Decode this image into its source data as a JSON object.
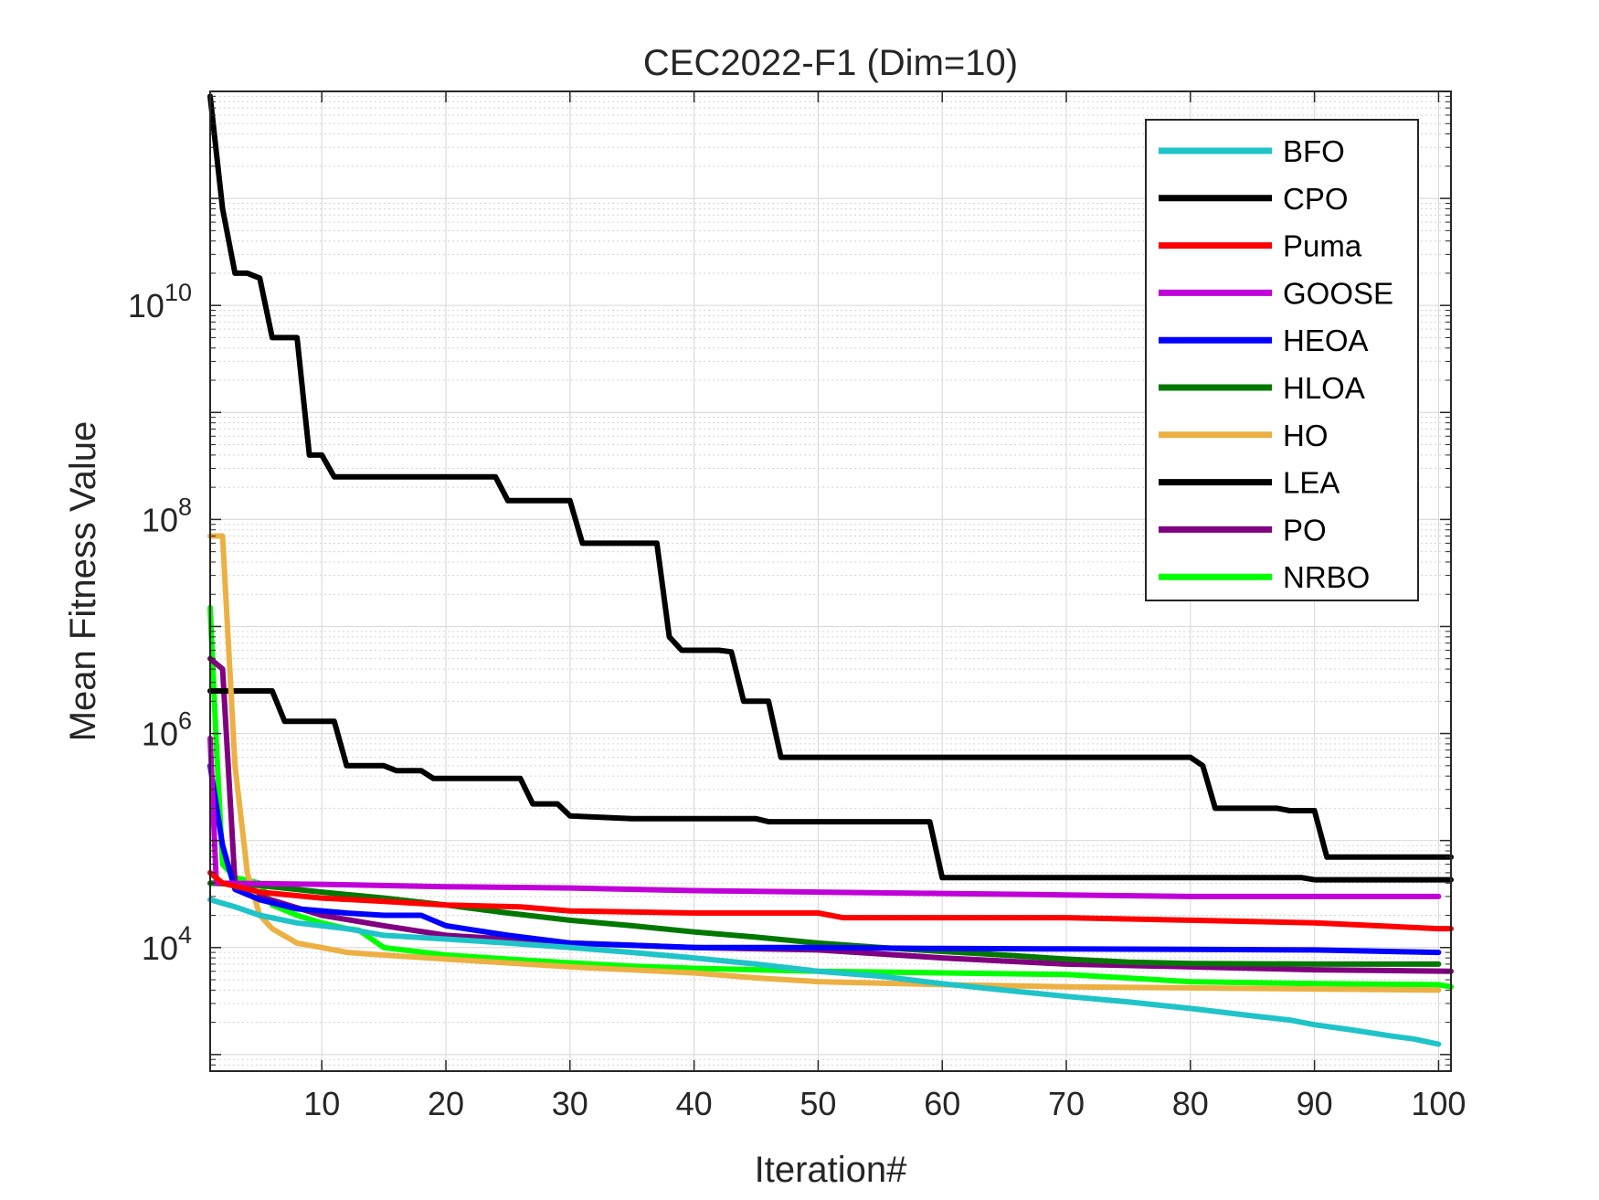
{
  "chart_data": {
    "type": "line",
    "title": "CEC2022-F1 (Dim=10)",
    "xlabel": "Iteration#",
    "ylabel": "Mean Fitness Value",
    "xlim": [
      1,
      101
    ],
    "ylim": [
      700,
      1000000000000
    ],
    "yscale": "log",
    "grid": true,
    "minor_grid": true,
    "legend_position": "top-right",
    "x_ticks": [
      10,
      20,
      30,
      40,
      50,
      60,
      70,
      80,
      90,
      100
    ],
    "x_tick_labels": [
      "10",
      "20",
      "30",
      "40",
      "50",
      "60",
      "70",
      "80",
      "90",
      "100"
    ],
    "y_ticks": [
      {
        "value": 10000,
        "base": "10",
        "exp": "4"
      },
      {
        "value": 1000000,
        "base": "10",
        "exp": "6"
      },
      {
        "value": 100000000,
        "base": "10",
        "exp": "8"
      },
      {
        "value": 10000000000,
        "base": "10",
        "exp": "10"
      }
    ],
    "series": [
      {
        "name": "BFO",
        "color": "#1ec4c8",
        "points": [
          [
            1,
            28000
          ],
          [
            3,
            24000
          ],
          [
            5,
            20000
          ],
          [
            8,
            17000
          ],
          [
            12,
            15000
          ],
          [
            15,
            13000
          ],
          [
            20,
            12000
          ],
          [
            25,
            11000
          ],
          [
            30,
            10000
          ],
          [
            35,
            9000
          ],
          [
            40,
            8000
          ],
          [
            45,
            7000
          ],
          [
            50,
            6000
          ],
          [
            55,
            5400
          ],
          [
            60,
            4600
          ],
          [
            65,
            4000
          ],
          [
            70,
            3500
          ],
          [
            75,
            3100
          ],
          [
            80,
            2700
          ],
          [
            85,
            2300
          ],
          [
            88,
            2100
          ],
          [
            90,
            1900
          ],
          [
            93,
            1700
          ],
          [
            96,
            1500
          ],
          [
            98,
            1400
          ],
          [
            100,
            1250
          ]
        ]
      },
      {
        "name": "CPO",
        "color": "#000000",
        "points": [
          [
            1,
            900000000000
          ],
          [
            2,
            80000000000
          ],
          [
            3,
            20000000000
          ],
          [
            4,
            20000000000
          ],
          [
            5,
            18000000000
          ],
          [
            6,
            5000000000
          ],
          [
            7,
            5000000000
          ],
          [
            8,
            5000000000
          ],
          [
            9,
            400000000
          ],
          [
            10,
            400000000
          ],
          [
            11,
            250000000
          ],
          [
            24,
            250000000
          ],
          [
            25,
            150000000
          ],
          [
            30,
            150000000
          ],
          [
            31,
            60000000
          ],
          [
            37,
            60000000
          ],
          [
            38,
            8000000
          ],
          [
            39,
            6000000
          ],
          [
            42,
            6000000
          ],
          [
            43,
            5800000
          ],
          [
            44,
            2000000
          ],
          [
            46,
            2000000
          ],
          [
            47,
            600000
          ],
          [
            80,
            600000
          ],
          [
            81,
            500000
          ],
          [
            82,
            200000
          ],
          [
            87,
            200000
          ],
          [
            88,
            190000
          ],
          [
            90,
            190000
          ],
          [
            91,
            70000
          ],
          [
            101,
            70000
          ]
        ]
      },
      {
        "name": "Puma",
        "color": "#ff0000",
        "points": [
          [
            1,
            50000
          ],
          [
            2,
            40000
          ],
          [
            5,
            33000
          ],
          [
            10,
            29000
          ],
          [
            15,
            27000
          ],
          [
            20,
            25000
          ],
          [
            26,
            24000
          ],
          [
            30,
            22000
          ],
          [
            40,
            21000
          ],
          [
            50,
            21000
          ],
          [
            52,
            19000
          ],
          [
            70,
            19000
          ],
          [
            80,
            18000
          ],
          [
            90,
            17000
          ],
          [
            95,
            16000
          ],
          [
            100,
            15000
          ],
          [
            101,
            15000
          ]
        ]
      },
      {
        "name": "GOOSE",
        "color": "#c000d8",
        "points": [
          [
            1,
            900000
          ],
          [
            1.5,
            40000
          ],
          [
            10,
            39000
          ],
          [
            20,
            37000
          ],
          [
            30,
            36000
          ],
          [
            40,
            34000
          ],
          [
            50,
            33000
          ],
          [
            60,
            32000
          ],
          [
            70,
            31000
          ],
          [
            80,
            30000
          ],
          [
            90,
            30000
          ],
          [
            100,
            30000
          ]
        ]
      },
      {
        "name": "HEOA",
        "color": "#0000ff",
        "points": [
          [
            1,
            500000
          ],
          [
            2,
            90000
          ],
          [
            3,
            35000
          ],
          [
            5,
            28000
          ],
          [
            8,
            23000
          ],
          [
            12,
            21000
          ],
          [
            15,
            20000
          ],
          [
            18,
            20000
          ],
          [
            20,
            16000
          ],
          [
            25,
            13000
          ],
          [
            30,
            11000
          ],
          [
            35,
            10500
          ],
          [
            40,
            10000
          ],
          [
            50,
            10000
          ],
          [
            60,
            9800
          ],
          [
            70,
            9700
          ],
          [
            80,
            9600
          ],
          [
            90,
            9500
          ],
          [
            100,
            9000
          ]
        ]
      },
      {
        "name": "HLOA",
        "color": "#007800",
        "points": [
          [
            1,
            40000
          ],
          [
            5,
            38000
          ],
          [
            10,
            33000
          ],
          [
            15,
            29000
          ],
          [
            20,
            25000
          ],
          [
            25,
            21000
          ],
          [
            30,
            18000
          ],
          [
            35,
            16000
          ],
          [
            40,
            14000
          ],
          [
            45,
            12500
          ],
          [
            50,
            11000
          ],
          [
            55,
            10000
          ],
          [
            60,
            9200
          ],
          [
            65,
            8500
          ],
          [
            70,
            7800
          ],
          [
            75,
            7300
          ],
          [
            80,
            7100
          ],
          [
            90,
            7000
          ],
          [
            100,
            7000
          ]
        ]
      },
      {
        "name": "HO",
        "color": "#ecb043",
        "points": [
          [
            1,
            70000000
          ],
          [
            2,
            70000000
          ],
          [
            3,
            500000
          ],
          [
            4,
            50000
          ],
          [
            5,
            20000
          ],
          [
            6,
            15000
          ],
          [
            8,
            11000
          ],
          [
            10,
            10000
          ],
          [
            12,
            9000
          ],
          [
            15,
            8500
          ],
          [
            20,
            7800
          ],
          [
            30,
            6600
          ],
          [
            40,
            5800
          ],
          [
            45,
            5200
          ],
          [
            50,
            4800
          ],
          [
            60,
            4500
          ],
          [
            70,
            4300
          ],
          [
            80,
            4200
          ],
          [
            90,
            4100
          ],
          [
            100,
            4000
          ]
        ]
      },
      {
        "name": "LEA",
        "color": "#000000",
        "points": [
          [
            1,
            2500000
          ],
          [
            6,
            2500000
          ],
          [
            7,
            1300000
          ],
          [
            11,
            1300000
          ],
          [
            12,
            500000
          ],
          [
            15,
            500000
          ],
          [
            16,
            450000
          ],
          [
            18,
            450000
          ],
          [
            19,
            380000
          ],
          [
            26,
            380000
          ],
          [
            27,
            220000
          ],
          [
            29,
            220000
          ],
          [
            30,
            170000
          ],
          [
            35,
            160000
          ],
          [
            45,
            160000
          ],
          [
            46,
            150000
          ],
          [
            59,
            150000
          ],
          [
            60,
            45000
          ],
          [
            89,
            45000
          ],
          [
            90,
            43000
          ],
          [
            101,
            43000
          ]
        ]
      },
      {
        "name": "PO",
        "color": "#800080",
        "points": [
          [
            1,
            5000000
          ],
          [
            2,
            4000000
          ],
          [
            3,
            40000
          ],
          [
            5,
            30000
          ],
          [
            10,
            20000
          ],
          [
            15,
            16000
          ],
          [
            20,
            13000
          ],
          [
            30,
            11000
          ],
          [
            40,
            10000
          ],
          [
            50,
            9500
          ],
          [
            60,
            8000
          ],
          [
            70,
            7000
          ],
          [
            80,
            6600
          ],
          [
            90,
            6200
          ],
          [
            101,
            6000
          ]
        ]
      },
      {
        "name": "NRBO",
        "color": "#00ff00",
        "points": [
          [
            1,
            15000000
          ],
          [
            1.5,
            800000
          ],
          [
            2,
            60000
          ],
          [
            3,
            45000
          ],
          [
            5,
            40000
          ],
          [
            6,
            25000
          ],
          [
            8,
            20000
          ],
          [
            10,
            17000
          ],
          [
            12,
            15000
          ],
          [
            13,
            14500
          ],
          [
            15,
            10000
          ],
          [
            20,
            8500
          ],
          [
            25,
            7800
          ],
          [
            30,
            7200
          ],
          [
            35,
            6700
          ],
          [
            40,
            6400
          ],
          [
            50,
            6000
          ],
          [
            60,
            5800
          ],
          [
            70,
            5600
          ],
          [
            80,
            4800
          ],
          [
            90,
            4600
          ],
          [
            100,
            4500
          ],
          [
            101,
            4300
          ]
        ]
      }
    ]
  }
}
